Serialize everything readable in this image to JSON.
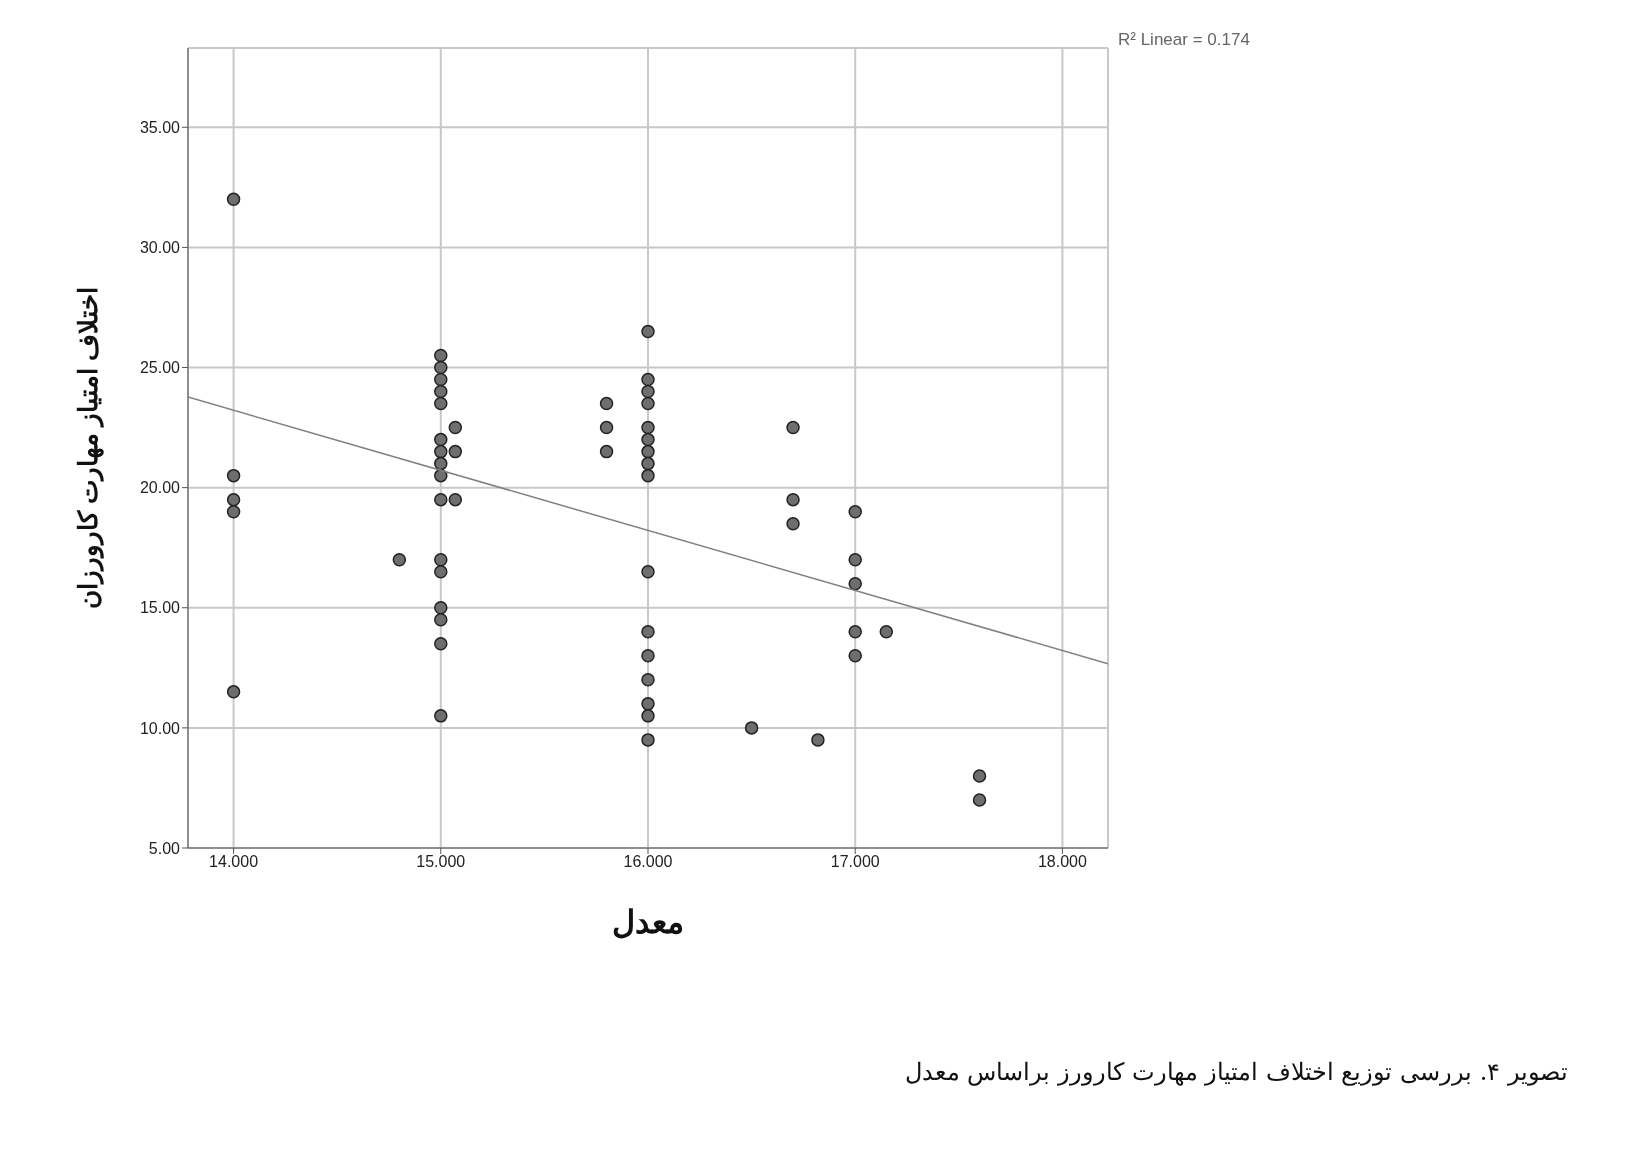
{
  "chart_data": {
    "type": "scatter",
    "xlabel": "معدل",
    "ylabel": "اختلاف امتیاز مهارت کارورزان",
    "annotations": [
      "R² Linear = 0.174",
      "تصویر ۴. بررسی توزیع اختلاف امتیاز مهارت کارورز براساس معدل"
    ],
    "xlim": [
      13.78,
      18.22
    ],
    "ylim": [
      5,
      38.3
    ],
    "xticks": [
      {
        "value": 14,
        "label": "14.000"
      },
      {
        "value": 15,
        "label": "15.000"
      },
      {
        "value": 16,
        "label": "16.000"
      },
      {
        "value": 17,
        "label": "17.000"
      },
      {
        "value": 18,
        "label": "18.000"
      }
    ],
    "yticks": [
      {
        "value": 5,
        "label": "5.00"
      },
      {
        "value": 10,
        "label": "10.00"
      },
      {
        "value": 15,
        "label": "15.00"
      },
      {
        "value": 20,
        "label": "20.00"
      },
      {
        "value": 25,
        "label": "25.00"
      },
      {
        "value": 30,
        "label": "30.00"
      },
      {
        "value": 35,
        "label": "35.00"
      }
    ],
    "grid": true,
    "marker": "circle",
    "series": [
      {
        "type": "scatter",
        "color": "#6e6e6e",
        "x": [
          14,
          14,
          14,
          14,
          14,
          14.8,
          15,
          15,
          15,
          15,
          15,
          15,
          15,
          15,
          15,
          15,
          15,
          15,
          15,
          15,
          15,
          15,
          15.07,
          15.07,
          15.07,
          15.8,
          15.8,
          15.8,
          16,
          16,
          16,
          16,
          16,
          16,
          16,
          16,
          16,
          16,
          16,
          16,
          16,
          16,
          16,
          16,
          16.5,
          16.7,
          16.7,
          16.7,
          16.82,
          17,
          17,
          17,
          17,
          17,
          17.15,
          17.6,
          17.6
        ],
        "values": [
          32,
          20.5,
          19.5,
          19,
          11.5,
          17,
          25.5,
          25,
          24.5,
          24,
          23.5,
          22,
          21.5,
          21,
          20.5,
          19.5,
          17,
          16.5,
          15,
          14.5,
          13.5,
          10.5,
          22.5,
          21.5,
          19.5,
          23.5,
          22.5,
          21.5,
          26.5,
          24.5,
          24,
          23.5,
          22.5,
          22,
          21.5,
          21,
          20.5,
          16.5,
          14,
          13,
          12,
          11,
          10.5,
          9.5,
          10,
          22.5,
          19.5,
          18.5,
          9.5,
          19,
          17,
          16,
          14,
          13,
          14,
          8,
          7
        ]
      },
      {
        "type": "line",
        "color": "#808080",
        "x": [
          13.78,
          18.22
        ],
        "values": [
          23.77,
          12.67
        ],
        "marker": "none"
      }
    ]
  }
}
